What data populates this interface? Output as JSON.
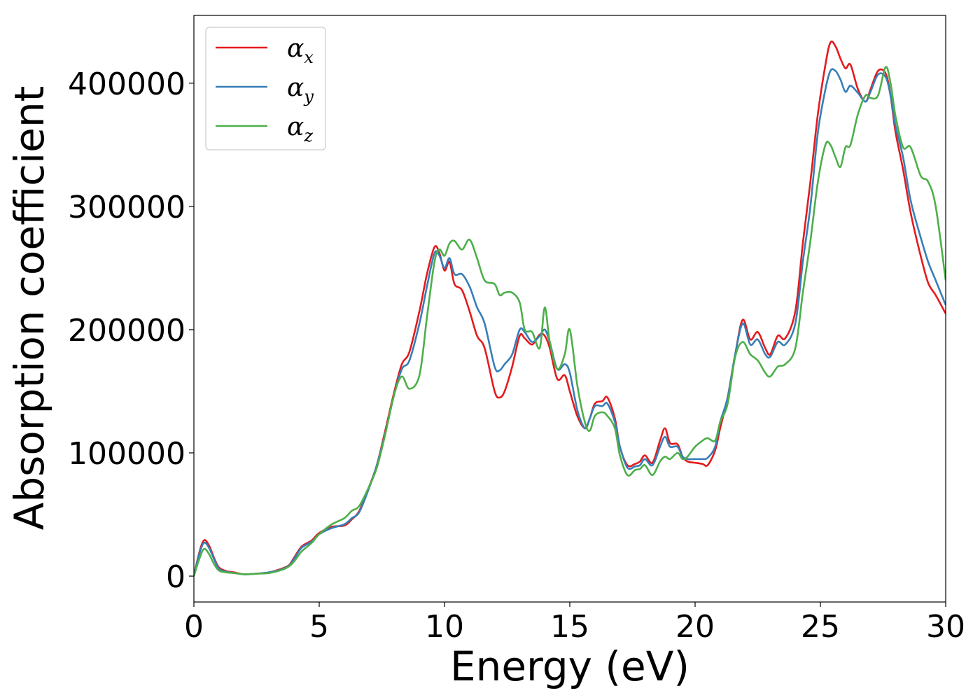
{
  "chart_data": {
    "type": "line",
    "title": "",
    "xlabel": "Energy (eV)",
    "ylabel": "Absorption coefficient",
    "xlim": [
      0,
      30
    ],
    "ylim": [
      -21000,
      455000
    ],
    "xticks": [
      0,
      5,
      10,
      15,
      20,
      25,
      30
    ],
    "xtick_labels": [
      "0",
      "5",
      "10",
      "15",
      "20",
      "25",
      "30"
    ],
    "yticks": [
      0,
      100000,
      200000,
      300000,
      400000
    ],
    "ytick_labels": [
      "0",
      "100000",
      "200000",
      "300000",
      "400000"
    ],
    "grid": false,
    "legend_position": "upper-left",
    "series": [
      {
        "name": "αx",
        "legend_symbol": "α",
        "legend_subscript": "x",
        "color": "#e41a1c",
        "x": [
          0,
          0.2,
          0.4,
          0.6,
          0.8,
          1.0,
          1.3,
          1.6,
          2.0,
          2.5,
          3.0,
          3.5,
          3.8,
          4.0,
          4.3,
          4.7,
          5.0,
          5.5,
          6.0,
          6.3,
          6.6,
          7.0,
          7.3,
          7.6,
          8.0,
          8.3,
          8.6,
          9.0,
          9.3,
          9.6,
          9.8,
          10.0,
          10.2,
          10.4,
          10.7,
          11.0,
          11.3,
          11.6,
          12.0,
          12.2,
          12.4,
          12.7,
          13.0,
          13.2,
          13.5,
          13.8,
          14.0,
          14.2,
          14.5,
          14.8,
          15.0,
          15.3,
          15.6,
          15.8,
          16.0,
          16.3,
          16.5,
          16.8,
          17.0,
          17.3,
          17.6,
          17.8,
          18.0,
          18.3,
          18.6,
          18.8,
          19.0,
          19.3,
          19.5,
          19.7,
          20.0,
          20.3,
          20.5,
          20.8,
          21.0,
          21.3,
          21.6,
          21.9,
          22.2,
          22.5,
          22.8,
          23.0,
          23.3,
          23.6,
          24.0,
          24.3,
          24.6,
          24.9,
          25.2,
          25.4,
          25.6,
          25.8,
          26.0,
          26.2,
          26.5,
          26.8,
          27.0,
          27.3,
          27.6,
          27.8,
          28.0,
          28.3,
          28.6,
          29.0,
          29.3,
          29.6,
          30.0
        ],
        "y": [
          0,
          18000,
          29000,
          25000,
          15000,
          7000,
          4000,
          3000,
          1500,
          2000,
          3000,
          6000,
          9000,
          15000,
          24000,
          29000,
          35000,
          40000,
          41000,
          46000,
          53000,
          73000,
          90000,
          115000,
          150000,
          172000,
          182000,
          215000,
          245000,
          267000,
          262000,
          248000,
          255000,
          237000,
          232000,
          215000,
          195000,
          185000,
          150000,
          145000,
          150000,
          170000,
          195000,
          193000,
          188000,
          196000,
          195000,
          185000,
          160000,
          163000,
          150000,
          130000,
          120000,
          128000,
          140000,
          142000,
          145000,
          128000,
          105000,
          90000,
          91000,
          93000,
          98000,
          92000,
          110000,
          120000,
          108000,
          107000,
          97000,
          93000,
          92000,
          91000,
          90000,
          102000,
          120000,
          145000,
          180000,
          208000,
          192000,
          198000,
          185000,
          180000,
          195000,
          193000,
          215000,
          270000,
          320000,
          375000,
          415000,
          433000,
          430000,
          420000,
          412000,
          415000,
          395000,
          385000,
          395000,
          410000,
          408000,
          390000,
          360000,
          330000,
          295000,
          260000,
          238000,
          228000,
          213000
        ]
      },
      {
        "name": "αy",
        "legend_symbol": "α",
        "legend_subscript": "y",
        "color": "#377eb8",
        "x": [
          0,
          0.2,
          0.4,
          0.6,
          0.8,
          1.0,
          1.3,
          1.6,
          2.0,
          2.5,
          3.0,
          3.5,
          3.8,
          4.0,
          4.3,
          4.7,
          5.0,
          5.5,
          6.0,
          6.3,
          6.6,
          7.0,
          7.3,
          7.6,
          8.0,
          8.3,
          8.6,
          9.0,
          9.3,
          9.6,
          9.8,
          10.0,
          10.2,
          10.4,
          10.7,
          11.0,
          11.3,
          11.6,
          12.0,
          12.2,
          12.4,
          12.7,
          13.0,
          13.2,
          13.5,
          13.8,
          14.0,
          14.2,
          14.5,
          14.8,
          15.0,
          15.3,
          15.6,
          15.8,
          16.0,
          16.3,
          16.5,
          16.8,
          17.0,
          17.3,
          17.6,
          17.8,
          18.0,
          18.3,
          18.6,
          18.8,
          19.0,
          19.3,
          19.5,
          19.7,
          20.0,
          20.3,
          20.5,
          20.8,
          21.0,
          21.3,
          21.6,
          21.9,
          22.2,
          22.5,
          22.8,
          23.0,
          23.3,
          23.6,
          24.0,
          24.3,
          24.6,
          24.9,
          25.2,
          25.4,
          25.6,
          25.8,
          26.0,
          26.2,
          26.5,
          26.8,
          27.0,
          27.3,
          27.6,
          27.8,
          28.0,
          28.3,
          28.6,
          29.0,
          29.3,
          29.6,
          30.0
        ],
        "y": [
          0,
          17000,
          27000,
          23000,
          14000,
          6000,
          3500,
          2500,
          1500,
          2000,
          3000,
          5500,
          8500,
          14000,
          23000,
          28000,
          34000,
          39000,
          42000,
          47000,
          52000,
          72000,
          90000,
          113000,
          148000,
          168000,
          175000,
          205000,
          235000,
          262000,
          260000,
          250000,
          258000,
          245000,
          245000,
          235000,
          218000,
          205000,
          170000,
          167000,
          172000,
          180000,
          200000,
          198000,
          190000,
          195000,
          200000,
          190000,
          168000,
          172000,
          165000,
          135000,
          120000,
          128000,
          138000,
          138000,
          140000,
          125000,
          105000,
          88000,
          89000,
          90000,
          95000,
          90000,
          105000,
          113000,
          105000,
          105000,
          97000,
          95000,
          95000,
          95000,
          96000,
          105000,
          125000,
          145000,
          180000,
          205000,
          188000,
          192000,
          180000,
          178000,
          190000,
          188000,
          205000,
          255000,
          300000,
          360000,
          395000,
          410000,
          410000,
          403000,
          393000,
          398000,
          392000,
          385000,
          393000,
          407000,
          405000,
          390000,
          365000,
          340000,
          305000,
          275000,
          255000,
          240000,
          220000
        ]
      },
      {
        "name": "αz",
        "legend_symbol": "α",
        "legend_subscript": "z",
        "color": "#4daf4a",
        "x": [
          0,
          0.2,
          0.4,
          0.6,
          0.8,
          1.0,
          1.3,
          1.6,
          2.0,
          2.5,
          3.0,
          3.5,
          3.8,
          4.0,
          4.3,
          4.7,
          5.0,
          5.5,
          6.0,
          6.3,
          6.6,
          7.0,
          7.3,
          7.6,
          8.0,
          8.3,
          8.6,
          9.0,
          9.3,
          9.6,
          9.8,
          10.0,
          10.2,
          10.4,
          10.7,
          11.0,
          11.3,
          11.6,
          12.0,
          12.2,
          12.4,
          12.7,
          13.0,
          13.2,
          13.5,
          13.8,
          14.0,
          14.2,
          14.5,
          14.8,
          15.0,
          15.3,
          15.6,
          15.8,
          16.0,
          16.3,
          16.5,
          16.8,
          17.0,
          17.3,
          17.6,
          17.8,
          18.0,
          18.3,
          18.6,
          18.8,
          19.0,
          19.3,
          19.5,
          19.7,
          20.0,
          20.3,
          20.5,
          20.8,
          21.0,
          21.3,
          21.6,
          21.9,
          22.2,
          22.5,
          22.8,
          23.0,
          23.3,
          23.6,
          24.0,
          24.3,
          24.6,
          24.9,
          25.2,
          25.4,
          25.6,
          25.8,
          26.0,
          26.2,
          26.5,
          26.8,
          27.0,
          27.3,
          27.6,
          27.8,
          28.0,
          28.3,
          28.6,
          29.0,
          29.3,
          29.6,
          30.0
        ],
        "y": [
          0,
          13000,
          22000,
          18000,
          10000,
          4500,
          3000,
          2500,
          1500,
          2000,
          2500,
          5000,
          8000,
          12000,
          20000,
          27000,
          34000,
          42000,
          47000,
          53000,
          57000,
          73000,
          88000,
          112000,
          148000,
          162000,
          152000,
          163000,
          210000,
          255000,
          265000,
          260000,
          270000,
          272000,
          265000,
          273000,
          258000,
          240000,
          237000,
          228000,
          230000,
          230000,
          222000,
          200000,
          198000,
          185000,
          218000,
          190000,
          168000,
          180000,
          200000,
          155000,
          125000,
          118000,
          130000,
          133000,
          130000,
          120000,
          98000,
          82000,
          86000,
          87000,
          90000,
          82000,
          93000,
          97000,
          95000,
          100000,
          95000,
          97000,
          105000,
          110000,
          112000,
          110000,
          125000,
          140000,
          178000,
          190000,
          180000,
          175000,
          165000,
          162000,
          170000,
          172000,
          185000,
          230000,
          272000,
          320000,
          350000,
          350000,
          340000,
          332000,
          348000,
          350000,
          375000,
          390000,
          388000,
          390000,
          413000,
          400000,
          373000,
          348000,
          348000,
          325000,
          320000,
          300000,
          240000
        ]
      }
    ]
  }
}
